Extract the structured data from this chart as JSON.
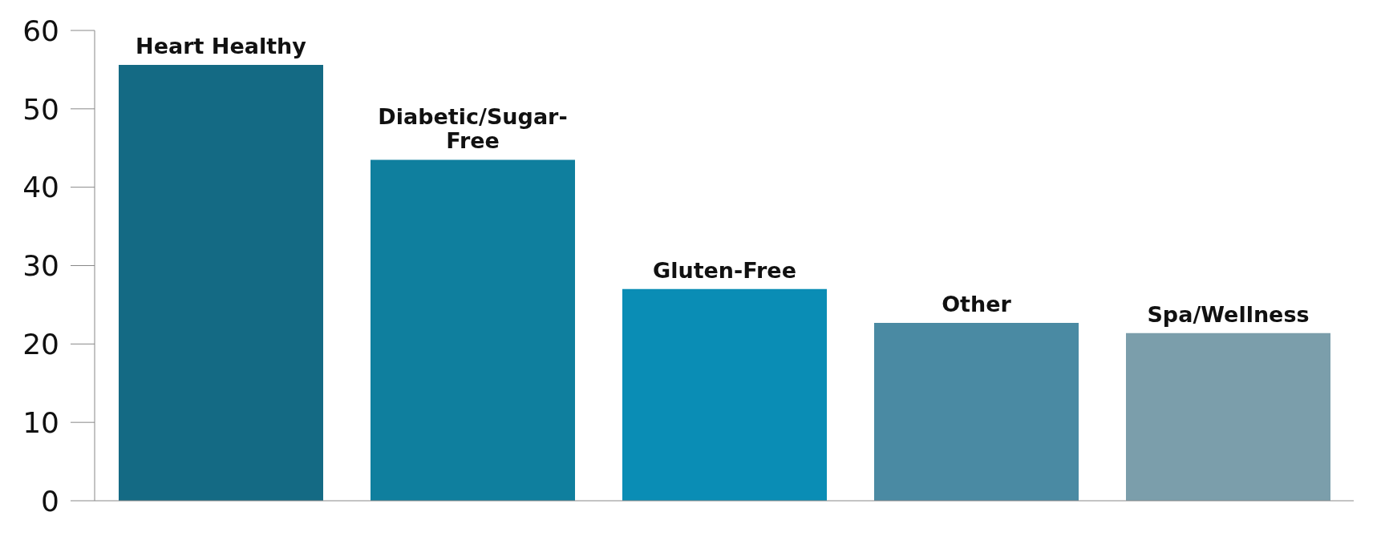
{
  "chart_data": {
    "type": "bar",
    "categories": [
      "Heart Healthy",
      "Diabetic/Sugar-Free",
      "Gluten-Free",
      "Other",
      "Spa/Wellness"
    ],
    "values": [
      55.6,
      43.5,
      27,
      22.7,
      21.4
    ],
    "colors": [
      "#146a84",
      "#0f7f9e",
      "#0a8db5",
      "#4a8aa3",
      "#7b9eab"
    ],
    "ylim": [
      0,
      60
    ],
    "yticks": [
      0,
      10,
      20,
      30,
      40,
      50,
      60
    ],
    "grid": false,
    "tick_labels": "y"
  }
}
